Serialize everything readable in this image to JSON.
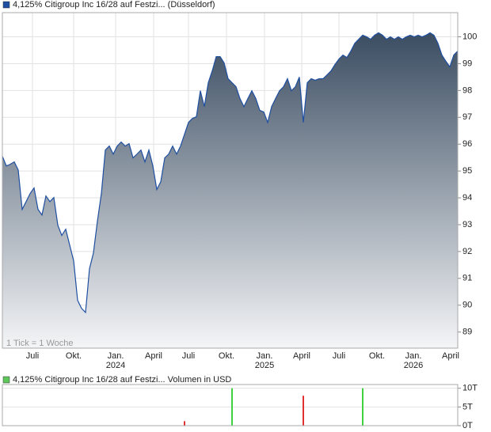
{
  "chart_data": [
    {
      "type": "area",
      "series": [
        {
          "name": "4,125% Citigroup Inc 16/28 auf Festzi... (Düsseldorf)",
          "color": "#1f4fa0",
          "values": [
            95.55,
            95.19,
            95.25,
            95.34,
            95.04,
            93.57,
            93.86,
            94.16,
            94.37,
            93.57,
            93.36,
            94.07,
            93.86,
            94.01,
            92.98,
            92.6,
            92.83,
            92.24,
            91.65,
            90.18,
            89.88,
            89.73,
            91.36,
            91.95,
            93.13,
            94.16,
            95.78,
            95.93,
            95.63,
            95.93,
            96.08,
            95.93,
            96.02,
            95.49,
            95.63,
            95.78,
            95.34,
            95.78,
            95.19,
            94.31,
            94.6,
            95.49,
            95.63,
            95.93,
            95.63,
            95.93,
            96.37,
            96.81,
            96.96,
            97.02,
            97.99,
            97.4,
            98.29,
            98.73,
            99.26,
            99.26,
            99.03,
            98.44,
            98.29,
            98.14,
            97.7,
            97.4,
            97.7,
            97.99,
            97.7,
            97.26,
            97.2,
            96.81,
            97.4,
            97.7,
            97.99,
            98.14,
            98.44,
            97.99,
            98.14,
            98.5,
            96.81,
            98.29,
            98.44,
            98.38,
            98.44,
            98.44,
            98.58,
            98.73,
            98.97,
            99.17,
            99.32,
            99.23,
            99.47,
            99.76,
            99.91,
            100.06,
            100.0,
            99.91,
            100.06,
            100.15,
            100.06,
            99.91,
            100.0,
            99.91,
            100.0,
            99.91,
            100.0,
            100.06,
            100.0,
            100.06,
            100.0,
            100.06,
            100.15,
            100.06,
            99.76,
            99.32,
            99.09,
            98.88,
            99.32,
            99.47
          ]
        }
      ],
      "xlim": [
        0,
        115
      ],
      "ylim": [
        88.4,
        100.9
      ],
      "yticks": [
        89,
        90,
        91,
        92,
        93,
        94,
        95,
        96,
        97,
        98,
        99,
        100
      ],
      "xticks": [
        {
          "value": 7.6,
          "label": "Juli"
        },
        {
          "value": 18,
          "label": "Okt."
        },
        {
          "value": 28.6,
          "label": "Jan."
        },
        {
          "value": 38.2,
          "label": "April"
        },
        {
          "value": 47,
          "label": "Juli"
        },
        {
          "value": 56.6,
          "label": "Okt."
        },
        {
          "value": 66.2,
          "label": "Jan."
        },
        {
          "value": 75.6,
          "label": "April"
        },
        {
          "value": 85,
          "label": "Juli"
        },
        {
          "value": 94.6,
          "label": "Okt."
        },
        {
          "value": 103.8,
          "label": "Jan."
        },
        {
          "value": 113.2,
          "label": "April"
        }
      ],
      "x_year_labels": [
        {
          "value": 28.6,
          "label": "2024"
        },
        {
          "value": 66.2,
          "label": "2025"
        },
        {
          "value": 103.8,
          "label": "2026"
        }
      ],
      "note": "1 Tick = 1 Woche",
      "grid": true
    },
    {
      "type": "bar",
      "series": [
        {
          "name": "4,125% Citigroup Inc 16/28 auf Festzi... Volumen in USD",
          "color": "#5cc85c",
          "x": [
            46,
            58,
            76,
            91
          ],
          "values": [
            1200,
            10000,
            8000,
            10000
          ],
          "colors": [
            "#e03030",
            "#40d040",
            "#e03030",
            "#40d040"
          ]
        }
      ],
      "xlim": [
        0,
        115
      ],
      "ylim": [
        0,
        11000
      ],
      "yticks": [
        {
          "value": 0,
          "label": "0T"
        },
        {
          "value": 5000,
          "label": "5T"
        },
        {
          "value": 10000,
          "label": "10T"
        }
      ],
      "grid": true
    }
  ]
}
